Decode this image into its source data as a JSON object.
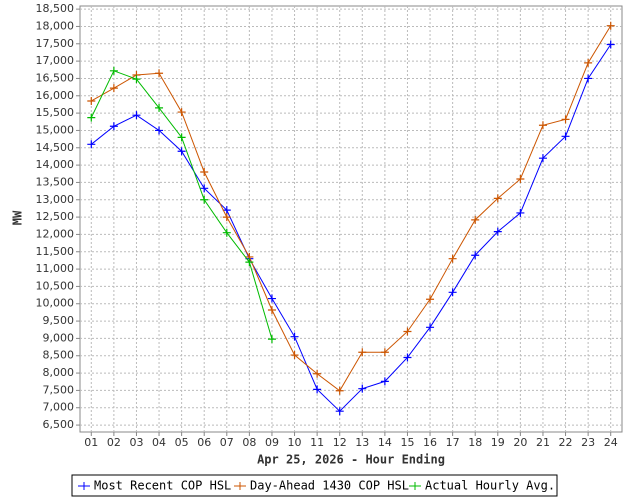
{
  "chart_data": {
    "type": "line",
    "x_label": "Apr 25, 2026 - Hour Ending",
    "y_label": "MW",
    "categories": [
      "01",
      "02",
      "03",
      "04",
      "05",
      "06",
      "07",
      "08",
      "09",
      "10",
      "11",
      "12",
      "13",
      "14",
      "15",
      "16",
      "17",
      "18",
      "19",
      "20",
      "21",
      "22",
      "23",
      "24"
    ],
    "series": [
      {
        "name": "Most Recent COP HSL",
        "color": "#0000ff",
        "values": [
          14600,
          15120,
          15440,
          15000,
          14400,
          13330,
          12700,
          11300,
          10150,
          9050,
          7530,
          6900,
          7550,
          7760,
          8450,
          9320,
          10330,
          11400,
          12080,
          12620,
          14200,
          14830,
          16500,
          17480
        ]
      },
      {
        "name": "Day-Ahead 1430 COP HSL",
        "color": "#cc5500",
        "values": [
          15850,
          16220,
          16600,
          16650,
          15530,
          13800,
          12500,
          11350,
          9820,
          8520,
          7980,
          7490,
          8600,
          8600,
          9200,
          10130,
          11300,
          12420,
          13040,
          13600,
          15150,
          15320,
          16950,
          18020
        ]
      },
      {
        "name": "Actual Hourly Avg.",
        "color": "#00bb00",
        "values": [
          15370,
          16720,
          16480,
          15650,
          14800,
          13000,
          12050,
          11200,
          8980,
          null,
          null,
          null,
          null,
          null,
          null,
          null,
          null,
          null,
          null,
          null,
          null,
          null,
          null,
          null
        ]
      }
    ],
    "ylim": [
      6300,
      18590
    ],
    "yticks": [
      {
        "value": 6500,
        "label": "6,500"
      },
      {
        "value": 7000,
        "label": "7,000"
      },
      {
        "value": 7500,
        "label": "7,500"
      },
      {
        "value": 8000,
        "label": "8,000"
      },
      {
        "value": 8500,
        "label": "8,500"
      },
      {
        "value": 9000,
        "label": "9,000"
      },
      {
        "value": 9500,
        "label": "9,500"
      },
      {
        "value": 10000,
        "label": "10,000"
      },
      {
        "value": 10500,
        "label": "10,500"
      },
      {
        "value": 11000,
        "label": "11,000"
      },
      {
        "value": 11500,
        "label": "11,500"
      },
      {
        "value": 12000,
        "label": "12,000"
      },
      {
        "value": 12500,
        "label": "12,500"
      },
      {
        "value": 13000,
        "label": "13,000"
      },
      {
        "value": 13500,
        "label": "13,500"
      },
      {
        "value": 14000,
        "label": "14,000"
      },
      {
        "value": 14500,
        "label": "14,500"
      },
      {
        "value": 15000,
        "label": "15,000"
      },
      {
        "value": 15500,
        "label": "15,500"
      },
      {
        "value": 16000,
        "label": "16,000"
      },
      {
        "value": 16500,
        "label": "16,500"
      },
      {
        "value": 17000,
        "label": "17,000"
      },
      {
        "value": 17500,
        "label": "17,500"
      },
      {
        "value": 18000,
        "label": "18,000"
      },
      {
        "value": 18500,
        "label": "18,500"
      }
    ],
    "grid": true
  }
}
